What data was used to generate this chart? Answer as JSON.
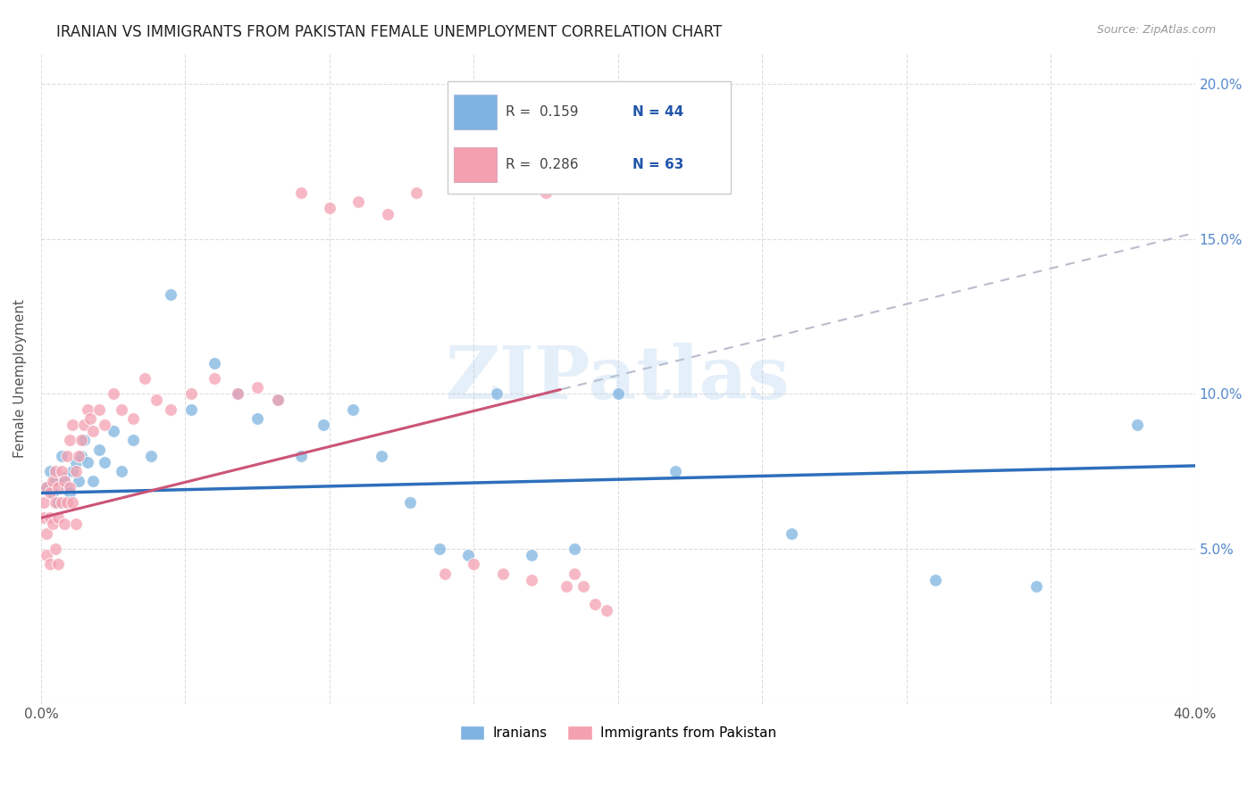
{
  "title": "IRANIAN VS IMMIGRANTS FROM PAKISTAN FEMALE UNEMPLOYMENT CORRELATION CHART",
  "source": "Source: ZipAtlas.com",
  "ylabel": "Female Unemployment",
  "legend_label1": "Iranians",
  "legend_label2": "Immigrants from Pakistan",
  "R1": 0.159,
  "N1": 44,
  "R2": 0.286,
  "N2": 63,
  "color_iranian": "#7EB3E0",
  "color_pakistan": "#F4A0B0",
  "trendline_color_iranian": "#2E6FBC",
  "trendline_color_pakistan": "#CC5577",
  "trendline_dashed_color": "#BBBBCC",
  "watermark": "ZIPatlas",
  "xlim": [
    0.0,
    0.4
  ],
  "ylim": [
    0.0,
    0.21
  ],
  "iran_x": [
    0.002,
    0.003,
    0.004,
    0.005,
    0.006,
    0.007,
    0.008,
    0.009,
    0.01,
    0.011,
    0.012,
    0.013,
    0.014,
    0.015,
    0.016,
    0.018,
    0.02,
    0.022,
    0.025,
    0.028,
    0.032,
    0.038,
    0.045,
    0.052,
    0.06,
    0.068,
    0.075,
    0.082,
    0.09,
    0.098,
    0.108,
    0.118,
    0.128,
    0.138,
    0.148,
    0.158,
    0.17,
    0.185,
    0.2,
    0.22,
    0.26,
    0.31,
    0.345,
    0.38
  ],
  "iran_y": [
    0.07,
    0.075,
    0.068,
    0.072,
    0.065,
    0.08,
    0.073,
    0.07,
    0.068,
    0.075,
    0.078,
    0.072,
    0.08,
    0.085,
    0.078,
    0.072,
    0.082,
    0.078,
    0.088,
    0.075,
    0.085,
    0.08,
    0.132,
    0.095,
    0.11,
    0.1,
    0.092,
    0.098,
    0.08,
    0.09,
    0.095,
    0.08,
    0.065,
    0.05,
    0.048,
    0.1,
    0.048,
    0.05,
    0.1,
    0.075,
    0.055,
    0.04,
    0.038,
    0.09
  ],
  "pak_x": [
    0.001,
    0.001,
    0.002,
    0.002,
    0.002,
    0.003,
    0.003,
    0.003,
    0.004,
    0.004,
    0.005,
    0.005,
    0.005,
    0.006,
    0.006,
    0.006,
    0.007,
    0.007,
    0.008,
    0.008,
    0.009,
    0.009,
    0.01,
    0.01,
    0.011,
    0.011,
    0.012,
    0.012,
    0.013,
    0.014,
    0.015,
    0.016,
    0.017,
    0.018,
    0.02,
    0.022,
    0.025,
    0.028,
    0.032,
    0.036,
    0.04,
    0.045,
    0.052,
    0.06,
    0.068,
    0.075,
    0.082,
    0.09,
    0.1,
    0.11,
    0.12,
    0.13,
    0.14,
    0.15,
    0.16,
    0.17,
    0.175,
    0.178,
    0.182,
    0.185,
    0.188,
    0.192,
    0.196
  ],
  "pak_y": [
    0.065,
    0.06,
    0.07,
    0.055,
    0.048,
    0.068,
    0.06,
    0.045,
    0.072,
    0.058,
    0.075,
    0.065,
    0.05,
    0.07,
    0.06,
    0.045,
    0.075,
    0.065,
    0.072,
    0.058,
    0.08,
    0.065,
    0.085,
    0.07,
    0.09,
    0.065,
    0.075,
    0.058,
    0.08,
    0.085,
    0.09,
    0.095,
    0.092,
    0.088,
    0.095,
    0.09,
    0.1,
    0.095,
    0.092,
    0.105,
    0.098,
    0.095,
    0.1,
    0.105,
    0.1,
    0.102,
    0.098,
    0.165,
    0.16,
    0.162,
    0.158,
    0.165,
    0.042,
    0.045,
    0.042,
    0.04,
    0.165,
    0.168,
    0.038,
    0.042,
    0.038,
    0.032,
    0.03
  ]
}
